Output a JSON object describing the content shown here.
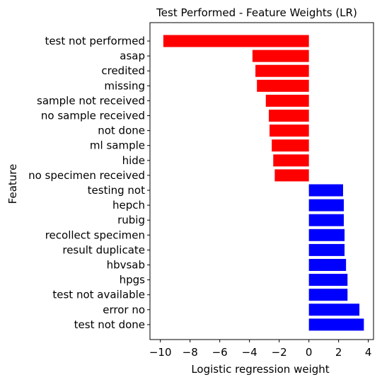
{
  "chart_data": {
    "type": "bar",
    "orientation": "horizontal",
    "title": "Test Performed - Feature Weights (LR)",
    "xlabel": "Logistic regression weight",
    "ylabel": "Feature",
    "xlim": [
      -10.7,
      4.35
    ],
    "xticks": [
      -10,
      -8,
      -6,
      -4,
      -2,
      0,
      2,
      4
    ],
    "xtick_labels": [
      "−10",
      "−8",
      "−6",
      "−4",
      "−2",
      "0",
      "2",
      "4"
    ],
    "grid": false,
    "categories": [
      "test not performed",
      "asap",
      "credited",
      "missing",
      "sample not received",
      "no sample received",
      "not done",
      "ml sample",
      "hide",
      "no specimen received",
      "testing not",
      "hepch",
      "rubig",
      "recollect specimen",
      "result duplicate",
      "hbvsab",
      "hpgs",
      "test not available",
      "error no",
      "test not done"
    ],
    "values": [
      -9.8,
      -3.8,
      -3.6,
      -3.5,
      -2.9,
      -2.7,
      -2.65,
      -2.5,
      -2.4,
      -2.3,
      2.3,
      2.35,
      2.35,
      2.4,
      2.4,
      2.5,
      2.6,
      2.6,
      3.4,
      3.7
    ],
    "colors": {
      "negative": "#ff0000",
      "positive": "#0000ff"
    }
  }
}
